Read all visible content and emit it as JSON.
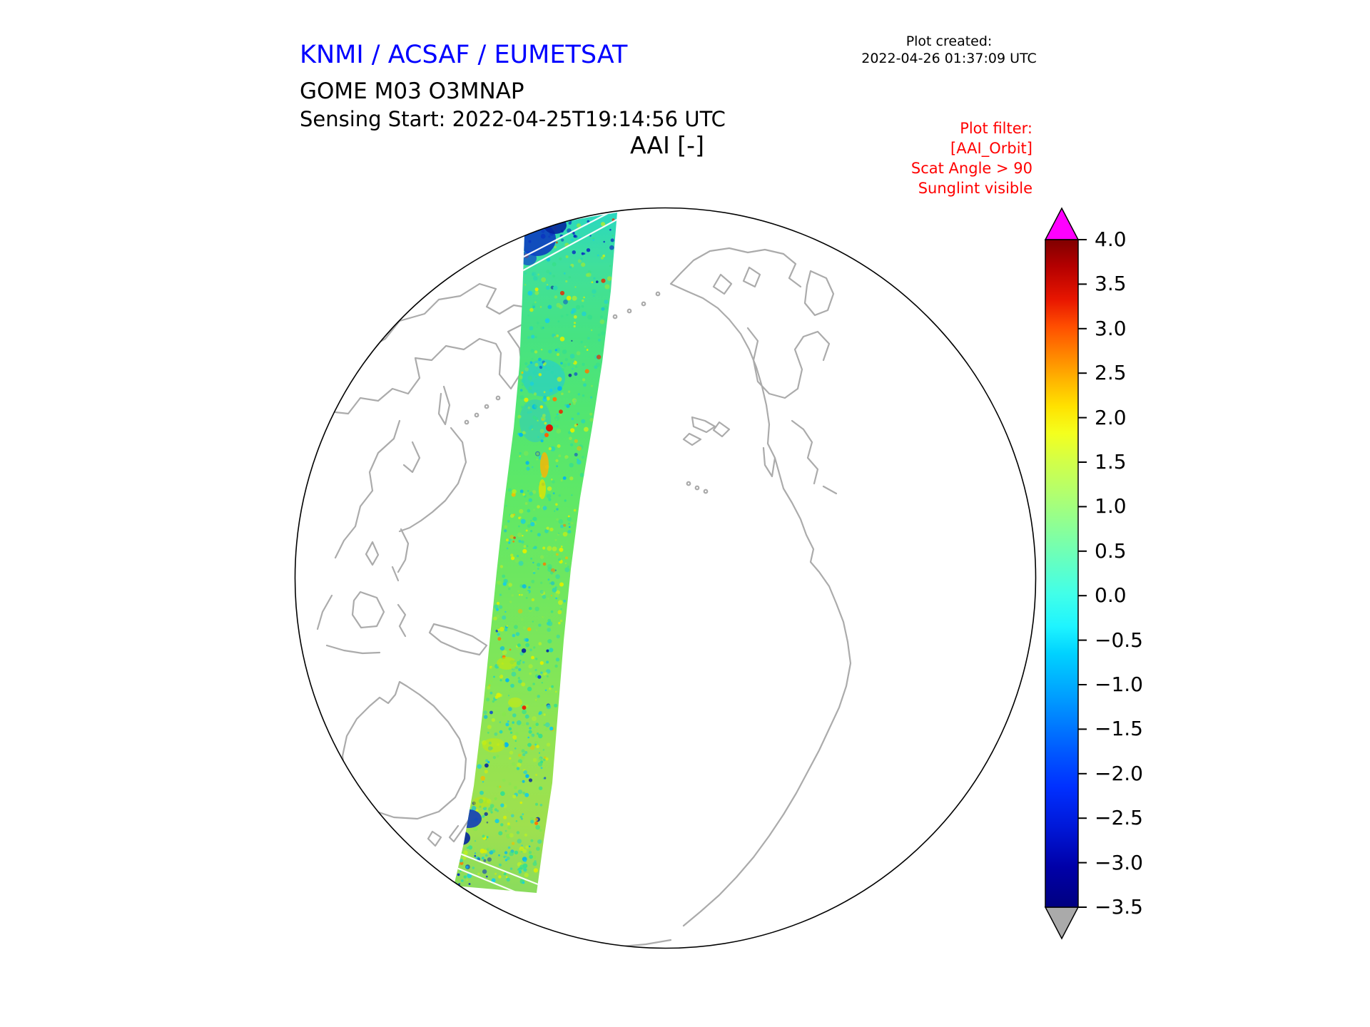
{
  "header": {
    "agency": "KNMI / ACSAF / EUMETSAT",
    "agency_color": "#0000ff",
    "created_label": "Plot created:",
    "created_value": "2022-04-26 01:37:09 UTC",
    "product": "GOME M03 O3MNAP",
    "sensing_start": "Sensing Start: 2022-04-25T19:14:56 UTC",
    "plot_title": "AAI [-]"
  },
  "plot_filter": {
    "color": "#ff0000",
    "line1": "Plot filter:",
    "line2": "[AAI_Orbit]",
    "line3": "Scat Angle > 90",
    "line4": "Sunglint visible"
  },
  "map": {
    "projection": "orthographic globe over the Pacific",
    "coastline_color": "#aaaaaa",
    "boundary_color": "#000000",
    "background_color": "#ffffff"
  },
  "colorbar": {
    "vmax": 4.0,
    "vmin": -3.5,
    "step": 0.5,
    "over_color": "#ff00ff",
    "under_color": "#aaaaaa",
    "label_values": [
      "4.0",
      "3.5",
      "3.0",
      "2.5",
      "2.0",
      "1.5",
      "1.0",
      "0.5",
      "0.0",
      "−0.5",
      "−1.0",
      "−1.5",
      "−2.0",
      "−2.5",
      "−3.0",
      "−3.5"
    ]
  },
  "chart_data": {
    "type": "heatmap",
    "title": "AAI [-]",
    "subtitle": "GOME M03 O3MNAP — Sensing Start: 2022-04-25T19:14:56 UTC",
    "description": "Absorbing Aerosol Index of a single satellite orbit swath rendered on an orthographic globe centered on the Pacific; swath runs from the Arctic (top) south-southwest to high southern latitudes (bottom).",
    "value_range": [
      -3.5,
      4.0
    ],
    "colorbar_ticks": [
      4.0,
      3.5,
      3.0,
      2.5,
      2.0,
      1.5,
      1.0,
      0.5,
      0.0,
      -0.5,
      -1.0,
      -1.5,
      -2.0,
      -2.5,
      -3.0,
      -3.5
    ],
    "colormap": "jet (dark blue → cyan → green → yellow → red), over=magenta, under=gray",
    "swath_values_summary": "Mostly −1.0 to +1.0 (cyan/green); yellow patches near +1.0 in the southern half; isolated red/orange anomaly (≈+2.5 to +3) near the middle of the swath; dark blue values (≈−2 to −3.5) at the northern entry edge and the southern exit edge; thin white gaps cross the swath near both ends.",
    "annotations": [
      "Plot filter:",
      "[AAI_Orbit]",
      "Scat Angle > 90",
      "Sunglint visible"
    ],
    "legend_position": "vertical colorbar on right with over/under arrow extensions"
  }
}
